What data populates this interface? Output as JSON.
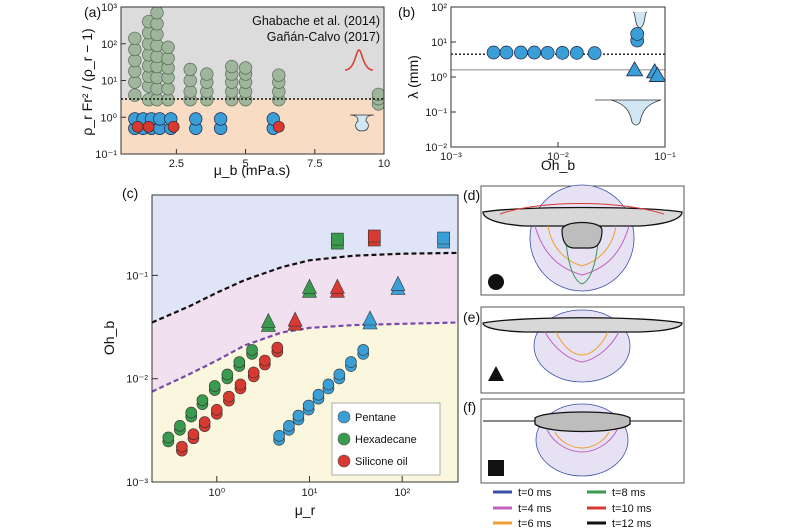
{
  "colors": {
    "pentane": "#3a9fd6",
    "hexadecane": "#3a9a4e",
    "silicone": "#d83a32",
    "grey": "#9fb59c",
    "regime_blue": "#dfe4f6",
    "regime_pink": "#f1e0f0",
    "regime_yellow": "#fbf7df",
    "peach": "#f8dcc3"
  },
  "legend_entries": [
    "Pentane",
    "Hexadecane",
    "Silicone oil"
  ],
  "time_legend": [
    "t=0 ms",
    "t=4 ms",
    "t=6 ms",
    "t=8 ms",
    "t=10 ms",
    "t=12 ms"
  ],
  "time_colors": [
    "#3b4fa8",
    "#c060c0",
    "#f0a030",
    "#3a9a4e",
    "#d83a32",
    "#111111"
  ],
  "chart_data": [
    {
      "panel": "(a)",
      "type": "scatter",
      "xlabel": "μ_b (mPa.s)",
      "ylabel": "ρ_r Fr² / (ρ_r − 1)",
      "xlim": [
        0.5,
        10
      ],
      "ylim": [
        0.1,
        1000
      ],
      "yscale": "log",
      "xticks": [
        "2.5",
        "5",
        "7.5",
        "10"
      ],
      "yticks": [
        "10⁻¹",
        "10⁰",
        "10¹",
        "10²",
        "10³"
      ],
      "threshold": 2,
      "annotations": [
        "Ghabache et al. (2014)",
        "Gañán-Calvo (2017)"
      ],
      "grey_points": [
        [
          1.0,
          4
        ],
        [
          1.0,
          9
        ],
        [
          1.0,
          18
        ],
        [
          1.0,
          35
        ],
        [
          1.0,
          70
        ],
        [
          1.0,
          140
        ],
        [
          1.5,
          3
        ],
        [
          1.5,
          7
        ],
        [
          1.5,
          13
        ],
        [
          1.5,
          25
        ],
        [
          1.5,
          50
        ],
        [
          1.5,
          100
        ],
        [
          1.5,
          200
        ],
        [
          1.5,
          400
        ],
        [
          1.8,
          3
        ],
        [
          1.8,
          6
        ],
        [
          1.8,
          12
        ],
        [
          1.8,
          24
        ],
        [
          1.8,
          45
        ],
        [
          1.8,
          90
        ],
        [
          1.8,
          180
        ],
        [
          1.8,
          350
        ],
        [
          1.8,
          700
        ],
        [
          2.2,
          3
        ],
        [
          2.2,
          6
        ],
        [
          2.2,
          12
        ],
        [
          2.2,
          22
        ],
        [
          2.2,
          40
        ],
        [
          2.2,
          80
        ],
        [
          3.0,
          3
        ],
        [
          3.0,
          5
        ],
        [
          3.0,
          10
        ],
        [
          3.0,
          20
        ],
        [
          3.6,
          3
        ],
        [
          3.6,
          5
        ],
        [
          3.6,
          9
        ],
        [
          3.6,
          15
        ],
        [
          4.5,
          3
        ],
        [
          4.5,
          5
        ],
        [
          4.5,
          9
        ],
        [
          4.5,
          15
        ],
        [
          4.5,
          24
        ],
        [
          5.0,
          3
        ],
        [
          5.0,
          5
        ],
        [
          5.0,
          9
        ],
        [
          5.0,
          15
        ],
        [
          5.0,
          22
        ],
        [
          6.2,
          3
        ],
        [
          6.2,
          5
        ],
        [
          6.2,
          9
        ],
        [
          6.2,
          14
        ],
        [
          9.8,
          2.3
        ],
        [
          9.8,
          3.2
        ],
        [
          9.8,
          4.2
        ]
      ],
      "blue_points": [
        [
          1.0,
          0.5
        ],
        [
          1.0,
          0.9
        ],
        [
          1.3,
          0.5
        ],
        [
          1.3,
          0.9
        ],
        [
          1.6,
          0.5
        ],
        [
          1.6,
          0.9
        ],
        [
          1.9,
          0.5
        ],
        [
          1.9,
          0.9
        ],
        [
          2.3,
          0.5
        ],
        [
          2.3,
          0.9
        ],
        [
          3.2,
          0.5
        ],
        [
          3.2,
          0.9
        ],
        [
          4.1,
          0.5
        ],
        [
          4.1,
          0.9
        ],
        [
          6.0,
          0.5
        ],
        [
          6.0,
          0.9
        ]
      ],
      "red_points": [
        [
          1.1,
          0.55
        ],
        [
          1.5,
          0.55
        ],
        [
          2.4,
          0.55
        ],
        [
          6.2,
          0.55
        ]
      ]
    },
    {
      "panel": "(b)",
      "type": "scatter",
      "xlabel": "Oh_b",
      "ylabel": "λ (mm)",
      "xscale": "log",
      "yscale": "log",
      "xlim": [
        0.001,
        0.1
      ],
      "ylim": [
        0.01,
        100
      ],
      "xticks": [
        "10⁻³",
        "10⁻²",
        "10⁻¹"
      ],
      "yticks": [
        "10⁻²",
        "10⁻¹",
        "10⁰",
        "10¹",
        "10²"
      ],
      "dotted_line": 4.5,
      "solid_line": 1.6,
      "circles": [
        [
          0.0025,
          5.0
        ],
        [
          0.0033,
          5.0
        ],
        [
          0.0045,
          5.0
        ],
        [
          0.006,
          5.0
        ],
        [
          0.008,
          4.9
        ],
        [
          0.011,
          4.9
        ],
        [
          0.015,
          4.9
        ],
        [
          0.022,
          4.8
        ],
        [
          0.055,
          11
        ],
        [
          0.055,
          17
        ]
      ],
      "triangles": [
        [
          0.052,
          1.6
        ],
        [
          0.08,
          1.4
        ],
        [
          0.085,
          1.1
        ]
      ]
    },
    {
      "panel": "(c)",
      "type": "scatter",
      "xlabel": "μ_r",
      "ylabel": "Oh_b",
      "xscale": "log",
      "yscale": "log",
      "xlim": [
        0.2,
        400
      ],
      "ylim": [
        0.001,
        0.6
      ],
      "xticks": [
        "10⁰",
        "10¹",
        "10²"
      ],
      "yticks": [
        "10⁻³",
        "10⁻²",
        "10⁻¹"
      ],
      "upper_curve": [
        [
          0.2,
          0.035
        ],
        [
          0.5,
          0.05
        ],
        [
          1,
          0.068
        ],
        [
          2,
          0.09
        ],
        [
          5,
          0.12
        ],
        [
          10,
          0.14
        ],
        [
          30,
          0.155
        ],
        [
          100,
          0.162
        ],
        [
          400,
          0.165
        ]
      ],
      "lower_curve": [
        [
          0.2,
          0.0075
        ],
        [
          0.5,
          0.011
        ],
        [
          1,
          0.015
        ],
        [
          2,
          0.021
        ],
        [
          5,
          0.028
        ],
        [
          10,
          0.031
        ],
        [
          30,
          0.033
        ],
        [
          100,
          0.034
        ],
        [
          400,
          0.035
        ]
      ],
      "series": [
        {
          "name": "Pentane",
          "marker": "circle",
          "points": [
            [
              4.7,
              0.0028
            ],
            [
              6.0,
              0.0035
            ],
            [
              7.6,
              0.0044
            ],
            [
              9.8,
              0.0055
            ],
            [
              12.5,
              0.007
            ],
            [
              16,
              0.0088
            ],
            [
              21,
              0.011
            ],
            [
              28,
              0.0145
            ],
            [
              38,
              0.019
            ]
          ]
        },
        {
          "name": "Hexadecane",
          "marker": "circle",
          "points": [
            [
              0.3,
              0.0027
            ],
            [
              0.4,
              0.0035
            ],
            [
              0.53,
              0.0047
            ],
            [
              0.7,
              0.0062
            ],
            [
              0.95,
              0.0085
            ],
            [
              1.3,
              0.011
            ],
            [
              1.75,
              0.0145
            ],
            [
              2.4,
              0.019
            ]
          ]
        },
        {
          "name": "Silicone oil",
          "marker": "circle",
          "points": [
            [
              0.42,
              0.0022
            ],
            [
              0.56,
              0.0029
            ],
            [
              0.74,
              0.0038
            ],
            [
              1.0,
              0.005
            ],
            [
              1.35,
              0.0067
            ],
            [
              1.8,
              0.0088
            ],
            [
              2.5,
              0.0115
            ],
            [
              3.3,
              0.015
            ],
            [
              4.5,
              0.02
            ]
          ]
        },
        {
          "name": "Pentane-triangle",
          "marker": "triangle",
          "points": [
            [
              45,
              0.037
            ],
            [
              90,
              0.08
            ]
          ]
        },
        {
          "name": "Hexadecane-triangle",
          "marker": "triangle",
          "points": [
            [
              3.6,
              0.035
            ],
            [
              10,
              0.075
            ]
          ]
        },
        {
          "name": "Silicone-triangle",
          "marker": "triangle",
          "points": [
            [
              7.0,
              0.036
            ],
            [
              20,
              0.075
            ]
          ]
        },
        {
          "name": "Hexadecane-square",
          "marker": "square",
          "points": [
            [
              20,
              0.21
            ]
          ]
        },
        {
          "name": "Silicone-square",
          "marker": "square",
          "points": [
            [
              50,
              0.225
            ]
          ]
        },
        {
          "name": "Pentane-square",
          "marker": "square",
          "points": [
            [
              280,
              0.215
            ]
          ]
        }
      ]
    }
  ],
  "panel_labels": [
    "(a)",
    "(b)",
    "(c)",
    "(d)",
    "(e)",
    "(f)"
  ]
}
